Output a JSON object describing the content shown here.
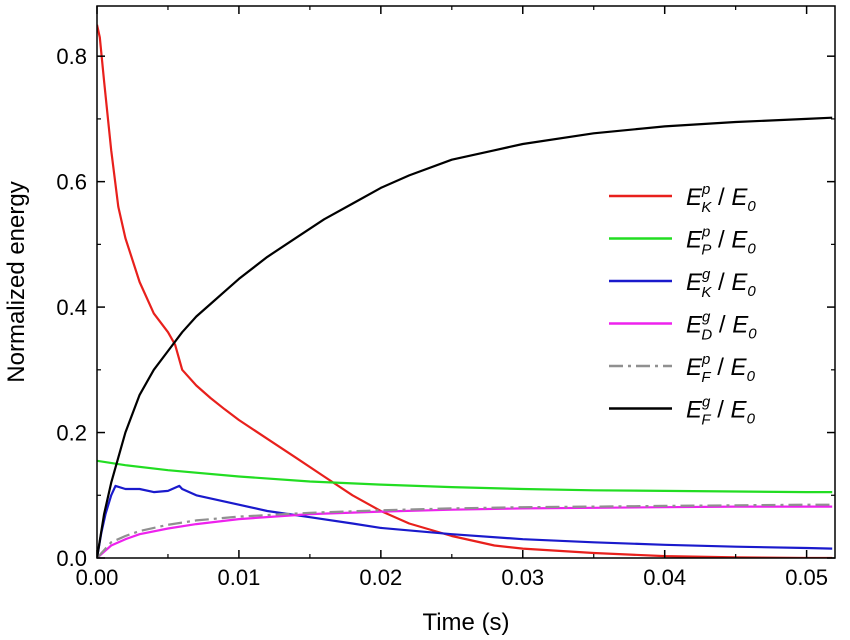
{
  "chart_data": {
    "type": "line",
    "title": "",
    "xlabel": "Time (s)",
    "ylabel": "Normalized energy",
    "xlim": [
      0,
      0.052
    ],
    "ylim": [
      0,
      0.88
    ],
    "xticks": [
      "0.00",
      "0.01",
      "0.02",
      "0.03",
      "0.04",
      "0.05"
    ],
    "xtick_values": [
      0,
      0.01,
      0.02,
      0.03,
      0.04,
      0.05
    ],
    "yticks": [
      "0.0",
      "0.2",
      "0.4",
      "0.6",
      "0.8"
    ],
    "ytick_values": [
      0,
      0.2,
      0.4,
      0.6,
      0.8
    ],
    "grid": false,
    "legend_position": "right",
    "series": [
      {
        "name": "E_K^p / E_0",
        "legend": {
          "sym": "E",
          "sup": "p",
          "sub": "K",
          "tail": " / ",
          "sym2": "E",
          "sub2": "0"
        },
        "color": "#e8201c",
        "dash": "solid",
        "x": [
          0,
          0.0002,
          0.0005,
          0.001,
          0.0015,
          0.002,
          0.003,
          0.004,
          0.005,
          0.0055,
          0.006,
          0.007,
          0.008,
          0.009,
          0.01,
          0.012,
          0.014,
          0.016,
          0.018,
          0.02,
          0.022,
          0.025,
          0.028,
          0.03,
          0.035,
          0.04,
          0.045,
          0.05,
          0.0518
        ],
        "y": [
          0.85,
          0.83,
          0.76,
          0.65,
          0.56,
          0.51,
          0.44,
          0.39,
          0.36,
          0.34,
          0.3,
          0.275,
          0.255,
          0.237,
          0.22,
          0.19,
          0.16,
          0.13,
          0.1,
          0.075,
          0.055,
          0.035,
          0.02,
          0.015,
          0.008,
          0.003,
          0.001,
          0.0,
          0.0
        ]
      },
      {
        "name": "E_P^p / E_0",
        "legend": {
          "sym": "E",
          "sup": "p",
          "sub": "P",
          "tail": " / ",
          "sym2": "E",
          "sub2": "0"
        },
        "color": "#22dd22",
        "dash": "solid",
        "x": [
          0,
          0.002,
          0.005,
          0.01,
          0.015,
          0.02,
          0.025,
          0.03,
          0.035,
          0.04,
          0.045,
          0.05,
          0.0518
        ],
        "y": [
          0.155,
          0.148,
          0.14,
          0.13,
          0.122,
          0.117,
          0.113,
          0.11,
          0.108,
          0.107,
          0.106,
          0.105,
          0.105
        ]
      },
      {
        "name": "E_K^g / E_0",
        "legend": {
          "sym": "E",
          "sup": "g",
          "sub": "K",
          "tail": " / ",
          "sym2": "E",
          "sub2": "0"
        },
        "color": "#1a1acc",
        "dash": "solid",
        "x": [
          0,
          0.0003,
          0.0006,
          0.001,
          0.0013,
          0.002,
          0.003,
          0.004,
          0.005,
          0.0058,
          0.006,
          0.007,
          0.008,
          0.01,
          0.012,
          0.015,
          0.018,
          0.02,
          0.025,
          0.03,
          0.035,
          0.04,
          0.045,
          0.05,
          0.0518
        ],
        "y": [
          0.0,
          0.04,
          0.07,
          0.1,
          0.115,
          0.11,
          0.11,
          0.105,
          0.107,
          0.115,
          0.11,
          0.1,
          0.095,
          0.085,
          0.075,
          0.065,
          0.055,
          0.048,
          0.038,
          0.03,
          0.025,
          0.021,
          0.018,
          0.016,
          0.015
        ]
      },
      {
        "name": "E_D^g / E_0",
        "legend": {
          "sym": "E",
          "sup": "g",
          "sub": "D",
          "tail": " / ",
          "sym2": "E",
          "sub2": "0"
        },
        "color": "#ee22ee",
        "dash": "solid",
        "x": [
          0,
          0.001,
          0.002,
          0.003,
          0.005,
          0.007,
          0.01,
          0.015,
          0.02,
          0.025,
          0.03,
          0.035,
          0.04,
          0.045,
          0.05,
          0.0518
        ],
        "y": [
          0.0,
          0.02,
          0.03,
          0.038,
          0.047,
          0.054,
          0.062,
          0.07,
          0.074,
          0.077,
          0.079,
          0.08,
          0.081,
          0.082,
          0.082,
          0.082
        ]
      },
      {
        "name": "E_F^p / E_0",
        "legend": {
          "sym": "E",
          "sup": "p",
          "sub": "F",
          "tail": " / ",
          "sym2": "E",
          "sub2": "0"
        },
        "color": "#909090",
        "dash": "dashdot",
        "x": [
          0,
          0.001,
          0.002,
          0.003,
          0.005,
          0.007,
          0.01,
          0.015,
          0.02,
          0.025,
          0.03,
          0.035,
          0.04,
          0.045,
          0.05,
          0.0518
        ],
        "y": [
          0.0,
          0.025,
          0.035,
          0.043,
          0.053,
          0.06,
          0.066,
          0.072,
          0.076,
          0.079,
          0.081,
          0.082,
          0.083,
          0.084,
          0.085,
          0.085
        ]
      },
      {
        "name": "E_F^g / E_0",
        "legend": {
          "sym": "E",
          "sup": "g",
          "sub": "F",
          "tail": " / ",
          "sym2": "E",
          "sub2": "0"
        },
        "color": "#000000",
        "dash": "solid",
        "x": [
          0,
          0.0005,
          0.001,
          0.0015,
          0.002,
          0.003,
          0.004,
          0.005,
          0.006,
          0.007,
          0.008,
          0.009,
          0.01,
          0.012,
          0.014,
          0.016,
          0.018,
          0.02,
          0.022,
          0.025,
          0.028,
          0.03,
          0.035,
          0.04,
          0.045,
          0.05,
          0.0518
        ],
        "y": [
          0.0,
          0.07,
          0.12,
          0.16,
          0.2,
          0.26,
          0.3,
          0.33,
          0.36,
          0.385,
          0.405,
          0.425,
          0.445,
          0.48,
          0.51,
          0.54,
          0.565,
          0.59,
          0.61,
          0.635,
          0.65,
          0.66,
          0.677,
          0.688,
          0.695,
          0.7,
          0.702
        ]
      }
    ]
  }
}
